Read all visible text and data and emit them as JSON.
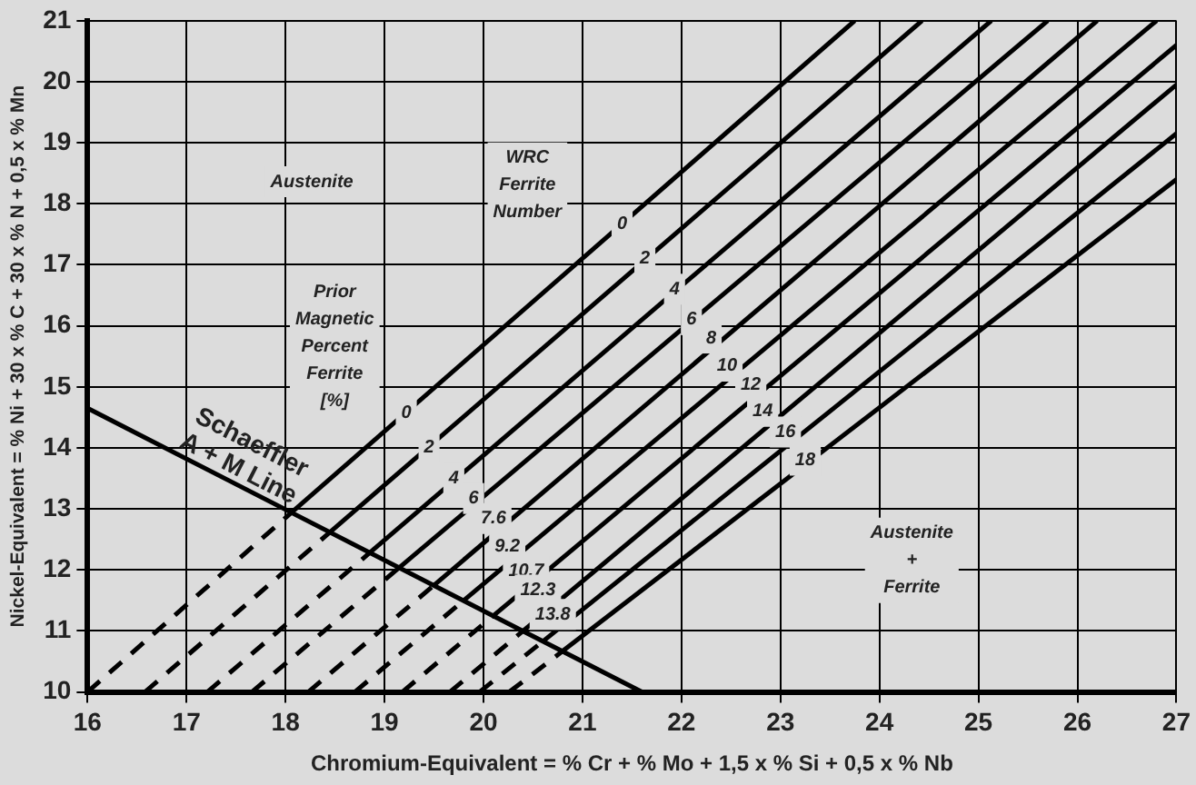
{
  "chart_data": {
    "type": "line",
    "xlabel": "Chromium-Equivalent = % Cr + % Mo + 1,5 x % Si + 0,5 x % Nb",
    "ylabel": "Nickel-Equivalent = % Ni + 30 x % C + 30 x % N + 0,5 x % Mn",
    "xlim": [
      16,
      27
    ],
    "ylim": [
      10,
      21
    ],
    "xticks": [
      16,
      17,
      18,
      19,
      20,
      21,
      22,
      23,
      24,
      25,
      26,
      27
    ],
    "yticks": [
      10,
      11,
      12,
      13,
      14,
      15,
      16,
      17,
      18,
      19,
      20,
      21
    ],
    "grid": true,
    "series": [
      {
        "name": "Schaeffler\nA + M Line",
        "color": "#000000",
        "line_style": "solid",
        "x": [
          16,
          21.6
        ],
        "values": [
          14.65,
          10
        ]
      },
      {
        "color": "#000000",
        "line_style": "solid",
        "x": [
          18.06,
          23.75
        ],
        "values": [
          12.94,
          21
        ]
      },
      {
        "color": "#000000",
        "line_style": "solid",
        "x": [
          18.45,
          24.43
        ],
        "values": [
          12.62,
          21
        ]
      },
      {
        "color": "#000000",
        "line_style": "solid",
        "x": [
          18.85,
          25.13
        ],
        "values": [
          12.28,
          21
        ]
      },
      {
        "color": "#000000",
        "line_style": "solid",
        "x": [
          19.15,
          25.7
        ],
        "values": [
          12.04,
          21
        ]
      },
      {
        "color": "#000000",
        "line_style": "solid",
        "x": [
          19.5,
          26.2
        ],
        "values": [
          11.75,
          21
        ]
      },
      {
        "color": "#000000",
        "line_style": "solid",
        "x": [
          19.8,
          26.8
        ],
        "values": [
          11.5,
          21
        ]
      },
      {
        "color": "#000000",
        "line_style": "solid",
        "x": [
          20.1,
          27
        ],
        "values": [
          11.25,
          20.6
        ]
      },
      {
        "color": "#000000",
        "line_style": "solid",
        "x": [
          20.4,
          27
        ],
        "values": [
          11,
          19.95
        ]
      },
      {
        "color": "#000000",
        "line_style": "solid",
        "x": [
          20.6,
          27
        ],
        "values": [
          10.83,
          19.15
        ]
      },
      {
        "color": "#000000",
        "line_style": "solid",
        "x": [
          20.8,
          27
        ],
        "values": [
          10.67,
          18.4
        ]
      },
      {
        "color": "#000000",
        "line_style": "dashed",
        "x": [
          16,
          18.06
        ],
        "values": [
          10,
          12.94
        ]
      },
      {
        "color": "#000000",
        "line_style": "dashed",
        "x": [
          16.58,
          18.45
        ],
        "values": [
          10,
          12.62
        ]
      },
      {
        "color": "#000000",
        "line_style": "dashed",
        "x": [
          17.21,
          18.85
        ],
        "values": [
          10,
          12.28
        ]
      },
      {
        "color": "#000000",
        "line_style": "dashed",
        "x": [
          17.66,
          19.15
        ],
        "values": [
          10,
          12.04
        ]
      },
      {
        "color": "#000000",
        "line_style": "dashed",
        "x": [
          18.23,
          19.5
        ],
        "values": [
          10,
          11.75
        ]
      },
      {
        "color": "#000000",
        "line_style": "dashed",
        "x": [
          18.7,
          19.8
        ],
        "values": [
          10,
          11.5
        ]
      },
      {
        "color": "#000000",
        "line_style": "dashed",
        "x": [
          19.18,
          20.1
        ],
        "values": [
          10,
          11.25
        ]
      },
      {
        "color": "#000000",
        "line_style": "dashed",
        "x": [
          19.66,
          20.4
        ],
        "values": [
          10,
          11
        ]
      },
      {
        "color": "#000000",
        "line_style": "dashed",
        "x": [
          19.96,
          20.6
        ],
        "values": [
          10,
          10.83
        ]
      },
      {
        "color": "#000000",
        "line_style": "dashed",
        "x": [
          20.26,
          20.8
        ],
        "values": [
          10,
          10.67
        ]
      }
    ],
    "annotations": [
      "Austenite",
      "WRC\nFerrite\nNumber",
      "Prior\nMagnetic\nPercent\nFerrite\n[%]",
      "Austenite\n+\nFerrite",
      {
        "text": "0",
        "x": 21.4,
        "y": 17.67
      },
      {
        "text": "2",
        "x": 21.63,
        "y": 17.1
      },
      {
        "text": "4",
        "x": 21.93,
        "y": 16.6
      },
      {
        "text": "6",
        "x": 22.1,
        "y": 16.1
      },
      {
        "text": "8",
        "x": 22.3,
        "y": 15.8
      },
      {
        "text": "10",
        "x": 22.46,
        "y": 15.34
      },
      {
        "text": "12",
        "x": 22.7,
        "y": 15.03
      },
      {
        "text": "14",
        "x": 22.82,
        "y": 14.6
      },
      {
        "text": "16",
        "x": 23.05,
        "y": 14.26
      },
      {
        "text": "18",
        "x": 23.25,
        "y": 13.8
      },
      {
        "text": "0",
        "x": 19.22,
        "y": 14.57
      },
      {
        "text": "2",
        "x": 19.45,
        "y": 14.0
      },
      {
        "text": "4",
        "x": 19.7,
        "y": 13.5
      },
      {
        "text": "6",
        "x": 19.9,
        "y": 13.17
      },
      {
        "text": "7.6",
        "x": 20.1,
        "y": 12.84
      },
      {
        "text": "9.2",
        "x": 20.24,
        "y": 12.38
      },
      {
        "text": "10.7",
        "x": 20.43,
        "y": 11.98
      },
      {
        "text": "12.3",
        "x": 20.55,
        "y": 11.67
      },
      {
        "text": "13.8",
        "x": 20.7,
        "y": 11.27
      }
    ]
  }
}
